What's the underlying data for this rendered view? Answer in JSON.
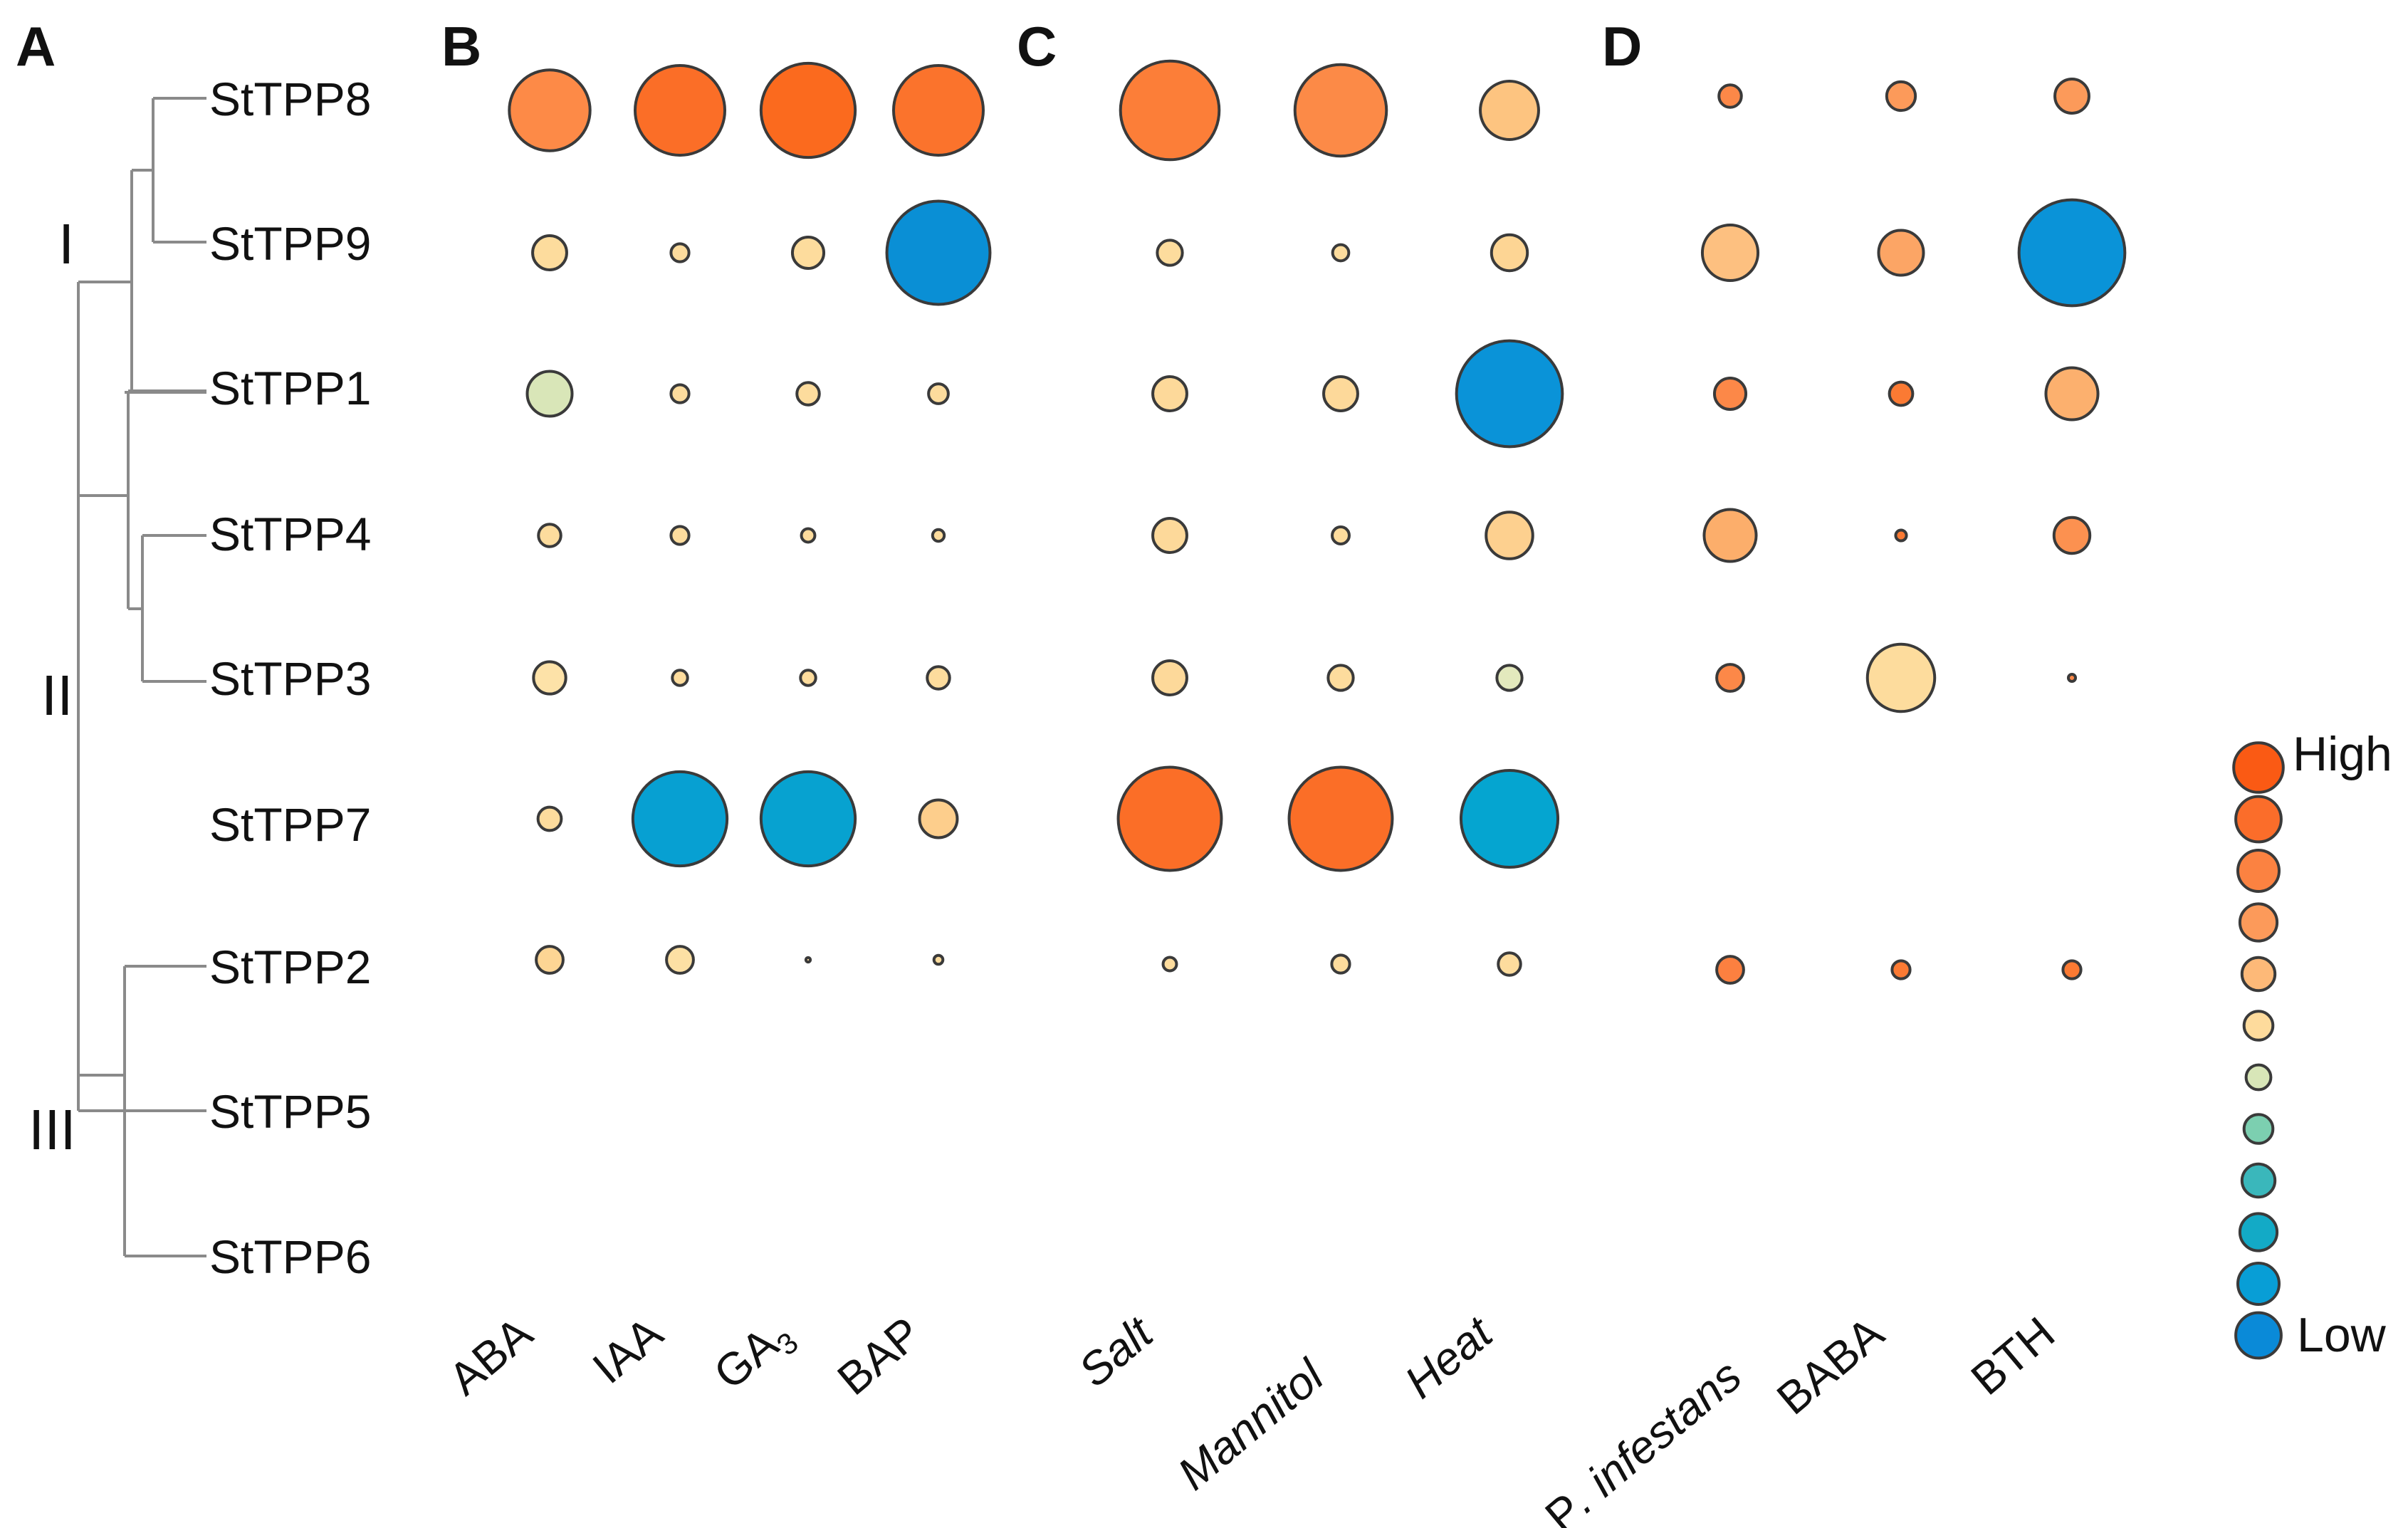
{
  "panels": {
    "a": "A",
    "b": "B",
    "c": "C",
    "d": "D"
  },
  "tree": {
    "genes": [
      "StTPP8",
      "StTPP9",
      "StTPP1",
      "StTPP4",
      "StTPP3",
      "StTPP7",
      "StTPP2",
      "StTPP5",
      "StTPP6"
    ],
    "clades": [
      {
        "name": "I",
        "color": "#e8252a",
        "genes": [
          "StTPP8",
          "StTPP9",
          "StTPP1"
        ]
      },
      {
        "name": "II",
        "color": "#52a844",
        "genes": [
          "StTPP4",
          "StTPP3",
          "StTPP7"
        ]
      },
      {
        "name": "III",
        "color": "#9a9ae0",
        "genes": [
          "StTPP2",
          "StTPP5",
          "StTPP6"
        ]
      }
    ]
  },
  "legend": {
    "high_label": "High",
    "low_label": "Low",
    "scale": [
      {
        "size": 12,
        "color": "#fa5a14"
      },
      {
        "size": 11,
        "color": "#fb6d2a"
      },
      {
        "size": 10,
        "color": "#fb8241"
      },
      {
        "size": 9,
        "color": "#fc9a5a"
      },
      {
        "size": 8,
        "color": "#fdb978"
      },
      {
        "size": 7,
        "color": "#fedb9c"
      },
      {
        "size": 6,
        "color": "#d8e6b8"
      },
      {
        "size": 7,
        "color": "#7ccfb0"
      },
      {
        "size": 8,
        "color": "#3ab7bb"
      },
      {
        "size": 9,
        "color": "#13aac6"
      },
      {
        "size": 10,
        "color": "#089ed6"
      },
      {
        "size": 11,
        "color": "#0a8ad8"
      }
    ]
  },
  "chart_data": [
    {
      "type": "scatter",
      "panel": "B",
      "title": "",
      "columns": [
        "ABA",
        "IAA",
        "GA3",
        "BAP"
      ],
      "column_labels": [
        {
          "base": "ABA"
        },
        {
          "base": "IAA"
        },
        {
          "base": "GA",
          "sub": "3"
        },
        {
          "base": "BAP"
        }
      ],
      "rows": [
        "StTPP8",
        "StTPP9",
        "StTPP1",
        "StTPP4",
        "StTPP3",
        "StTPP7",
        "StTPP2"
      ],
      "points": [
        {
          "gene": "StTPP8",
          "treatment": "ABA",
          "size": 9,
          "color": "#fd8a47"
        },
        {
          "gene": "StTPP8",
          "treatment": "IAA",
          "size": 10,
          "color": "#fb6e27"
        },
        {
          "gene": "StTPP8",
          "treatment": "GA3",
          "size": 10.5,
          "color": "#fb6a1e"
        },
        {
          "gene": "StTPP8",
          "treatment": "BAP",
          "size": 10,
          "color": "#fb732c"
        },
        {
          "gene": "StTPP9",
          "treatment": "ABA",
          "size": 3.8,
          "color": "#fddc9d"
        },
        {
          "gene": "StTPP9",
          "treatment": "IAA",
          "size": 2,
          "color": "#fddc9d"
        },
        {
          "gene": "StTPP9",
          "treatment": "GA3",
          "size": 3.5,
          "color": "#fddc9d"
        },
        {
          "gene": "StTPP9",
          "treatment": "BAP",
          "size": 11.5,
          "color": "#0a8fd5"
        },
        {
          "gene": "StTPP1",
          "treatment": "ABA",
          "size": 5,
          "color": "#d9e6b8"
        },
        {
          "gene": "StTPP1",
          "treatment": "IAA",
          "size": 2,
          "color": "#fddc9d"
        },
        {
          "gene": "StTPP1",
          "treatment": "GA3",
          "size": 2.5,
          "color": "#fddc9d"
        },
        {
          "gene": "StTPP1",
          "treatment": "BAP",
          "size": 2.2,
          "color": "#fddc9d"
        },
        {
          "gene": "StTPP4",
          "treatment": "ABA",
          "size": 2.5,
          "color": "#fddc9d"
        },
        {
          "gene": "StTPP4",
          "treatment": "IAA",
          "size": 2,
          "color": "#fddc9d"
        },
        {
          "gene": "StTPP4",
          "treatment": "GA3",
          "size": 1.5,
          "color": "#fddc9d"
        },
        {
          "gene": "StTPP4",
          "treatment": "BAP",
          "size": 1.3,
          "color": "#fddc9d"
        },
        {
          "gene": "StTPP3",
          "treatment": "ABA",
          "size": 3.6,
          "color": "#fde2a8"
        },
        {
          "gene": "StTPP3",
          "treatment": "IAA",
          "size": 1.7,
          "color": "#fddc9d"
        },
        {
          "gene": "StTPP3",
          "treatment": "GA3",
          "size": 1.7,
          "color": "#fddc9d"
        },
        {
          "gene": "StTPP3",
          "treatment": "BAP",
          "size": 2.5,
          "color": "#fddc9d"
        },
        {
          "gene": "StTPP7",
          "treatment": "ABA",
          "size": 2.6,
          "color": "#fddc9d"
        },
        {
          "gene": "StTPP7",
          "treatment": "IAA",
          "size": 10.5,
          "color": "#07a0d2"
        },
        {
          "gene": "StTPP7",
          "treatment": "GA3",
          "size": 10.5,
          "color": "#07a2d0"
        },
        {
          "gene": "StTPP7",
          "treatment": "BAP",
          "size": 4.2,
          "color": "#fdce8c"
        },
        {
          "gene": "StTPP2",
          "treatment": "ABA",
          "size": 3,
          "color": "#fdd594"
        },
        {
          "gene": "StTPP2",
          "treatment": "IAA",
          "size": 3,
          "color": "#fde0a4"
        },
        {
          "gene": "StTPP2",
          "treatment": "GA3",
          "size": 0.5,
          "color": "#fddc9d"
        },
        {
          "gene": "StTPP2",
          "treatment": "BAP",
          "size": 1,
          "color": "#fddc9d"
        }
      ]
    },
    {
      "type": "scatter",
      "panel": "C",
      "title": "",
      "columns": [
        "Salt",
        "Mannitol",
        "Heat"
      ],
      "column_labels": [
        {
          "base": "Salt"
        },
        {
          "base": "Mannitol"
        },
        {
          "base": "Heat"
        }
      ],
      "rows": [
        "StTPP8",
        "StTPP9",
        "StTPP1",
        "StTPP4",
        "StTPP3",
        "StTPP7",
        "StTPP2"
      ],
      "points": [
        {
          "gene": "StTPP8",
          "treatment": "Salt",
          "size": 11,
          "color": "#fc7e38"
        },
        {
          "gene": "StTPP8",
          "treatment": "Mannitol",
          "size": 10.2,
          "color": "#fc8a47"
        },
        {
          "gene": "StTPP8",
          "treatment": "Heat",
          "size": 6.5,
          "color": "#fdc480"
        },
        {
          "gene": "StTPP9",
          "treatment": "Salt",
          "size": 2.8,
          "color": "#fddc9d"
        },
        {
          "gene": "StTPP9",
          "treatment": "Mannitol",
          "size": 1.8,
          "color": "#fddc9d"
        },
        {
          "gene": "StTPP9",
          "treatment": "Heat",
          "size": 4,
          "color": "#fdd594"
        },
        {
          "gene": "StTPP1",
          "treatment": "Salt",
          "size": 3.8,
          "color": "#fdd99a"
        },
        {
          "gene": "StTPP1",
          "treatment": "Mannitol",
          "size": 3.8,
          "color": "#fdd99a"
        },
        {
          "gene": "StTPP1",
          "treatment": "Heat",
          "size": 11.8,
          "color": "#0a93d8"
        },
        {
          "gene": "StTPP4",
          "treatment": "Salt",
          "size": 3.8,
          "color": "#fdd99a"
        },
        {
          "gene": "StTPP4",
          "treatment": "Mannitol",
          "size": 1.9,
          "color": "#fddc9d"
        },
        {
          "gene": "StTPP4",
          "treatment": "Heat",
          "size": 5.2,
          "color": "#fdd08f"
        },
        {
          "gene": "StTPP3",
          "treatment": "Salt",
          "size": 3.8,
          "color": "#fdd99a"
        },
        {
          "gene": "StTPP3",
          "treatment": "Mannitol",
          "size": 2.8,
          "color": "#fddc9d"
        },
        {
          "gene": "StTPP3",
          "treatment": "Heat",
          "size": 2.8,
          "color": "#e3e9bd"
        },
        {
          "gene": "StTPP7",
          "treatment": "Salt",
          "size": 11.5,
          "color": "#fb6e27"
        },
        {
          "gene": "StTPP7",
          "treatment": "Mannitol",
          "size": 11.5,
          "color": "#fb6e27"
        },
        {
          "gene": "StTPP7",
          "treatment": "Heat",
          "size": 10.8,
          "color": "#05a5d0"
        },
        {
          "gene": "StTPP2",
          "treatment": "Salt",
          "size": 1.5,
          "color": "#fddc9d"
        },
        {
          "gene": "StTPP2",
          "treatment": "Mannitol",
          "size": 2,
          "color": "#fddc9d"
        },
        {
          "gene": "StTPP2",
          "treatment": "Heat",
          "size": 2.5,
          "color": "#fddc9d"
        }
      ]
    },
    {
      "type": "scatter",
      "panel": "D",
      "title": "",
      "columns": [
        "P. infestans",
        "BABA",
        "BTH"
      ],
      "column_labels": [
        {
          "base": "P",
          "italic_tail": ". infestans"
        },
        {
          "base": "BABA"
        },
        {
          "base": "BTH"
        }
      ],
      "rows": [
        "StTPP8",
        "StTPP9",
        "StTPP1",
        "StTPP4",
        "StTPP3",
        "StTPP2"
      ],
      "points": [
        {
          "gene": "StTPP8",
          "treatment": "P. infestans",
          "size": 2.5,
          "color": "#fc8848"
        },
        {
          "gene": "StTPP8",
          "treatment": "BABA",
          "size": 3.2,
          "color": "#fc9a5a"
        },
        {
          "gene": "StTPP8",
          "treatment": "BTH",
          "size": 3.8,
          "color": "#fc9a5a"
        },
        {
          "gene": "StTPP9",
          "treatment": "P. infestans",
          "size": 6.2,
          "color": "#fdc080"
        },
        {
          "gene": "StTPP9",
          "treatment": "BABA",
          "size": 5,
          "color": "#fca565"
        },
        {
          "gene": "StTPP9",
          "treatment": "BTH",
          "size": 11.8,
          "color": "#0a93d8"
        },
        {
          "gene": "StTPP1",
          "treatment": "P. infestans",
          "size": 3.5,
          "color": "#fc8848"
        },
        {
          "gene": "StTPP1",
          "treatment": "BABA",
          "size": 2.6,
          "color": "#fb7a33"
        },
        {
          "gene": "StTPP1",
          "treatment": "BTH",
          "size": 5.8,
          "color": "#fcb06e"
        },
        {
          "gene": "StTPP4",
          "treatment": "P. infestans",
          "size": 5.8,
          "color": "#fcae6b"
        },
        {
          "gene": "StTPP4",
          "treatment": "BABA",
          "size": 1.2,
          "color": "#fb7a33"
        },
        {
          "gene": "StTPP4",
          "treatment": "BTH",
          "size": 4,
          "color": "#fc9150"
        },
        {
          "gene": "StTPP3",
          "treatment": "P. infestans",
          "size": 3,
          "color": "#fc8848"
        },
        {
          "gene": "StTPP3",
          "treatment": "BABA",
          "size": 7.5,
          "color": "#fddc9d"
        },
        {
          "gene": "StTPP3",
          "treatment": "BTH",
          "size": 0.8,
          "color": "#fc8848"
        },
        {
          "gene": "StTPP2",
          "treatment": "P. infestans",
          "size": 3,
          "color": "#fc8040"
        },
        {
          "gene": "StTPP2",
          "treatment": "BABA",
          "size": 2,
          "color": "#fb7a33"
        },
        {
          "gene": "StTPP2",
          "treatment": "BTH",
          "size": 2,
          "color": "#fb7a33"
        }
      ]
    }
  ]
}
